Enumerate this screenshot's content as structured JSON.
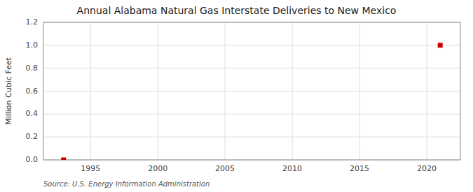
{
  "chart_data": {
    "type": "scatter",
    "title": "Annual Alabama Natural Gas Interstate Deliveries to New Mexico",
    "ylabel": "Million Cubic Feet",
    "source": "Source: U.S. Energy Information Administration",
    "x": [
      1993,
      2021
    ],
    "values": [
      0.0,
      1.0
    ],
    "color": "#cc0000",
    "marker": "square",
    "xlim": [
      1991.5,
      2022.5
    ],
    "ylim": [
      0.0,
      1.2
    ],
    "xticks": [
      1995,
      2000,
      2005,
      2010,
      2015,
      2020
    ],
    "yticks": [
      {
        "value": 0.0,
        "label": "0.0"
      },
      0.2,
      0.4,
      0.6,
      0.8,
      {
        "value": 1.0,
        "label": "1.0"
      },
      1.2
    ],
    "grid": true
  }
}
